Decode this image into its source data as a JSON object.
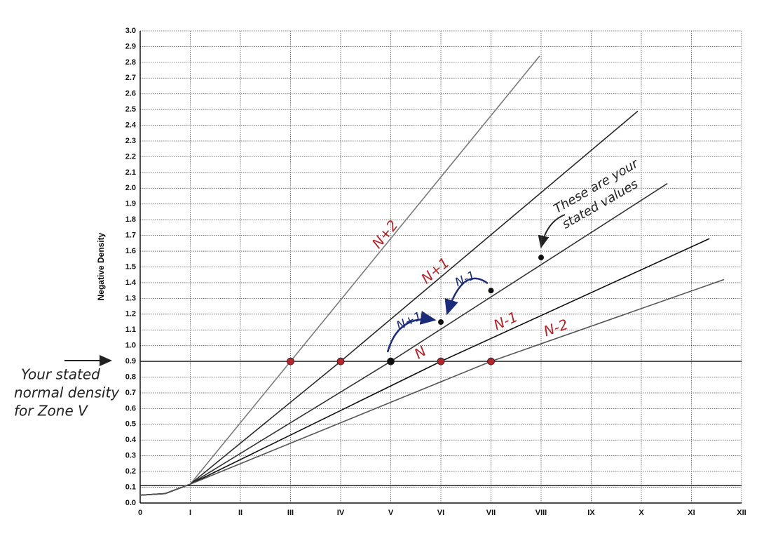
{
  "chart_data": {
    "type": "line",
    "ylabel": "Negative Density",
    "xlim": [
      0,
      12
    ],
    "ylim": [
      0,
      3
    ],
    "grid": true,
    "xticks": [
      0,
      {
        "value": 1,
        "label": "I"
      },
      {
        "value": 2,
        "label": "II"
      },
      {
        "value": 3,
        "label": "III"
      },
      {
        "value": 4,
        "label": "IV"
      },
      {
        "value": 5,
        "label": "V"
      },
      {
        "value": 6,
        "label": "VI"
      },
      {
        "value": 7,
        "label": "VII"
      },
      {
        "value": 8,
        "label": "VIII"
      },
      {
        "value": 9,
        "label": "IX"
      },
      {
        "value": 10,
        "label": "X"
      },
      {
        "value": 11,
        "label": "XI"
      },
      {
        "value": 12,
        "label": "XII"
      }
    ],
    "yticks": [
      {
        "value": 0,
        "label": "0.0"
      },
      0.1,
      0.2,
      0.3,
      0.4,
      0.5,
      0.6,
      0.7,
      0.8,
      0.9,
      {
        "value": 1,
        "label": "1.0"
      },
      1.1,
      1.2,
      1.3,
      1.4,
      1.5,
      1.6,
      1.7,
      1.8,
      1.9,
      {
        "value": 2,
        "label": "2.0"
      },
      2.1,
      2.2,
      2.3,
      2.4,
      2.5,
      2.6,
      2.7,
      2.8,
      2.9,
      {
        "value": 3,
        "label": "3.0"
      }
    ],
    "series": [
      {
        "name": "N+2",
        "color": "#7a7a7a",
        "x": [
          0,
          0.5,
          1,
          3,
          7.97
        ],
        "values": [
          0.05,
          0.06,
          0.12,
          0.9,
          2.84
        ]
      },
      {
        "name": "N+1",
        "color": "#2a2a2a",
        "x": [
          0,
          0.5,
          1,
          4,
          9.93
        ],
        "values": [
          0.05,
          0.06,
          0.12,
          0.9,
          2.49
        ]
      },
      {
        "name": "N",
        "color": "#333333",
        "x": [
          0,
          0.5,
          1,
          5,
          10.52
        ],
        "values": [
          0.05,
          0.06,
          0.12,
          0.9,
          2.03
        ]
      },
      {
        "name": "N-1",
        "color": "#111111",
        "x": [
          0,
          0.5,
          1,
          6,
          11.36
        ],
        "values": [
          0.05,
          0.06,
          0.12,
          0.9,
          1.68
        ]
      },
      {
        "name": "N-2",
        "color": "#555555",
        "x": [
          0,
          0.5,
          1,
          7,
          11.65
        ],
        "values": [
          0.05,
          0.06,
          0.12,
          0.9,
          1.42
        ]
      }
    ],
    "reference_lines": [
      0.9,
      0.11
    ],
    "markers": {
      "x": [
        3,
        4,
        5,
        6,
        7
      ],
      "values": [
        0.9,
        0.9,
        0.9,
        0.9,
        0.9
      ],
      "colors": [
        "#b3262b",
        "#b3262b",
        "#111111",
        "#b3262b",
        "#b3262b"
      ]
    },
    "stated_values": {
      "x": [
        6,
        7,
        8
      ],
      "values": [
        1.15,
        1.35,
        1.56
      ]
    },
    "notes": {
      "stated_values": [
        "These are your",
        "stated values"
      ],
      "normal_density": [
        "Your stated",
        "normal density",
        "for Zone V"
      ],
      "blue_plus": "N+1",
      "blue_minus": "N-1"
    }
  }
}
